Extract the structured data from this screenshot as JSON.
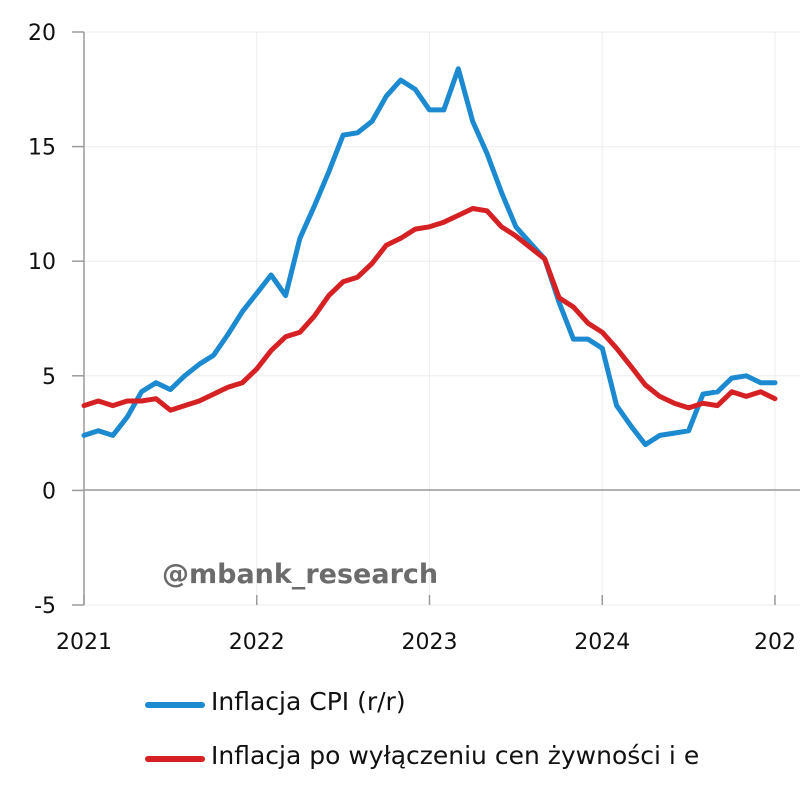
{
  "chart_data": {
    "type": "line",
    "watermark": "@mbank_research",
    "x_tick_labels": [
      "2021",
      "2022",
      "2023",
      "2024",
      "202"
    ],
    "y_tick_labels": [
      "-5",
      "0",
      "5",
      "10",
      "15",
      "20"
    ],
    "xlim": [
      2021.0,
      2025.0
    ],
    "ylim": [
      -5,
      20
    ],
    "grid": true,
    "legend_position": "bottom",
    "series": [
      {
        "name": "Inflacja CPI (r/r)",
        "color": "#1b8ad0",
        "x": [
          2021.0,
          2021.083,
          2021.167,
          2021.25,
          2021.333,
          2021.417,
          2021.5,
          2021.583,
          2021.667,
          2021.75,
          2021.833,
          2021.917,
          2022.0,
          2022.083,
          2022.167,
          2022.25,
          2022.333,
          2022.417,
          2022.5,
          2022.583,
          2022.667,
          2022.75,
          2022.833,
          2022.917,
          2023.0,
          2023.083,
          2023.167,
          2023.25,
          2023.333,
          2023.417,
          2023.5,
          2023.583,
          2023.667,
          2023.75,
          2023.833,
          2023.917,
          2024.0,
          2024.083,
          2024.167,
          2024.25,
          2024.333,
          2024.417,
          2024.5,
          2024.583,
          2024.667,
          2024.75,
          2024.833,
          2024.917,
          2025.0
        ],
        "values": [
          2.4,
          2.6,
          2.4,
          3.2,
          4.3,
          4.7,
          4.4,
          5.0,
          5.5,
          5.9,
          6.8,
          7.8,
          8.6,
          9.4,
          8.5,
          11.0,
          12.4,
          13.9,
          15.5,
          15.6,
          16.1,
          17.2,
          17.9,
          17.5,
          16.6,
          16.6,
          18.4,
          16.1,
          14.7,
          13.0,
          11.5,
          10.8,
          10.1,
          8.2,
          6.6,
          6.6,
          6.2,
          3.7,
          2.8,
          2.0,
          2.4,
          2.5,
          2.6,
          4.2,
          4.3,
          4.9,
          5.0,
          4.7,
          4.7
        ]
      },
      {
        "name": "Inflacja po wyłączeniu cen żywności i e",
        "color": "#d62124",
        "x": [
          2021.0,
          2021.083,
          2021.167,
          2021.25,
          2021.333,
          2021.417,
          2021.5,
          2021.583,
          2021.667,
          2021.75,
          2021.833,
          2021.917,
          2022.0,
          2022.083,
          2022.167,
          2022.25,
          2022.333,
          2022.417,
          2022.5,
          2022.583,
          2022.667,
          2022.75,
          2022.833,
          2022.917,
          2023.0,
          2023.083,
          2023.167,
          2023.25,
          2023.333,
          2023.417,
          2023.5,
          2023.583,
          2023.667,
          2023.75,
          2023.833,
          2023.917,
          2024.0,
          2024.083,
          2024.167,
          2024.25,
          2024.333,
          2024.417,
          2024.5,
          2024.583,
          2024.667,
          2024.75,
          2024.833,
          2024.917,
          2025.0
        ],
        "values": [
          3.7,
          3.9,
          3.7,
          3.9,
          3.9,
          4.0,
          3.5,
          3.7,
          3.9,
          4.2,
          4.5,
          4.7,
          5.3,
          6.1,
          6.7,
          6.9,
          7.6,
          8.5,
          9.1,
          9.3,
          9.9,
          10.7,
          11.0,
          11.4,
          11.5,
          11.7,
          12.0,
          12.3,
          12.2,
          11.5,
          11.1,
          10.6,
          10.1,
          8.4,
          8.0,
          7.3,
          6.9,
          6.2,
          5.4,
          4.6,
          4.1,
          3.8,
          3.6,
          3.8,
          3.7,
          4.3,
          4.1,
          4.3,
          4.0
        ]
      }
    ]
  }
}
